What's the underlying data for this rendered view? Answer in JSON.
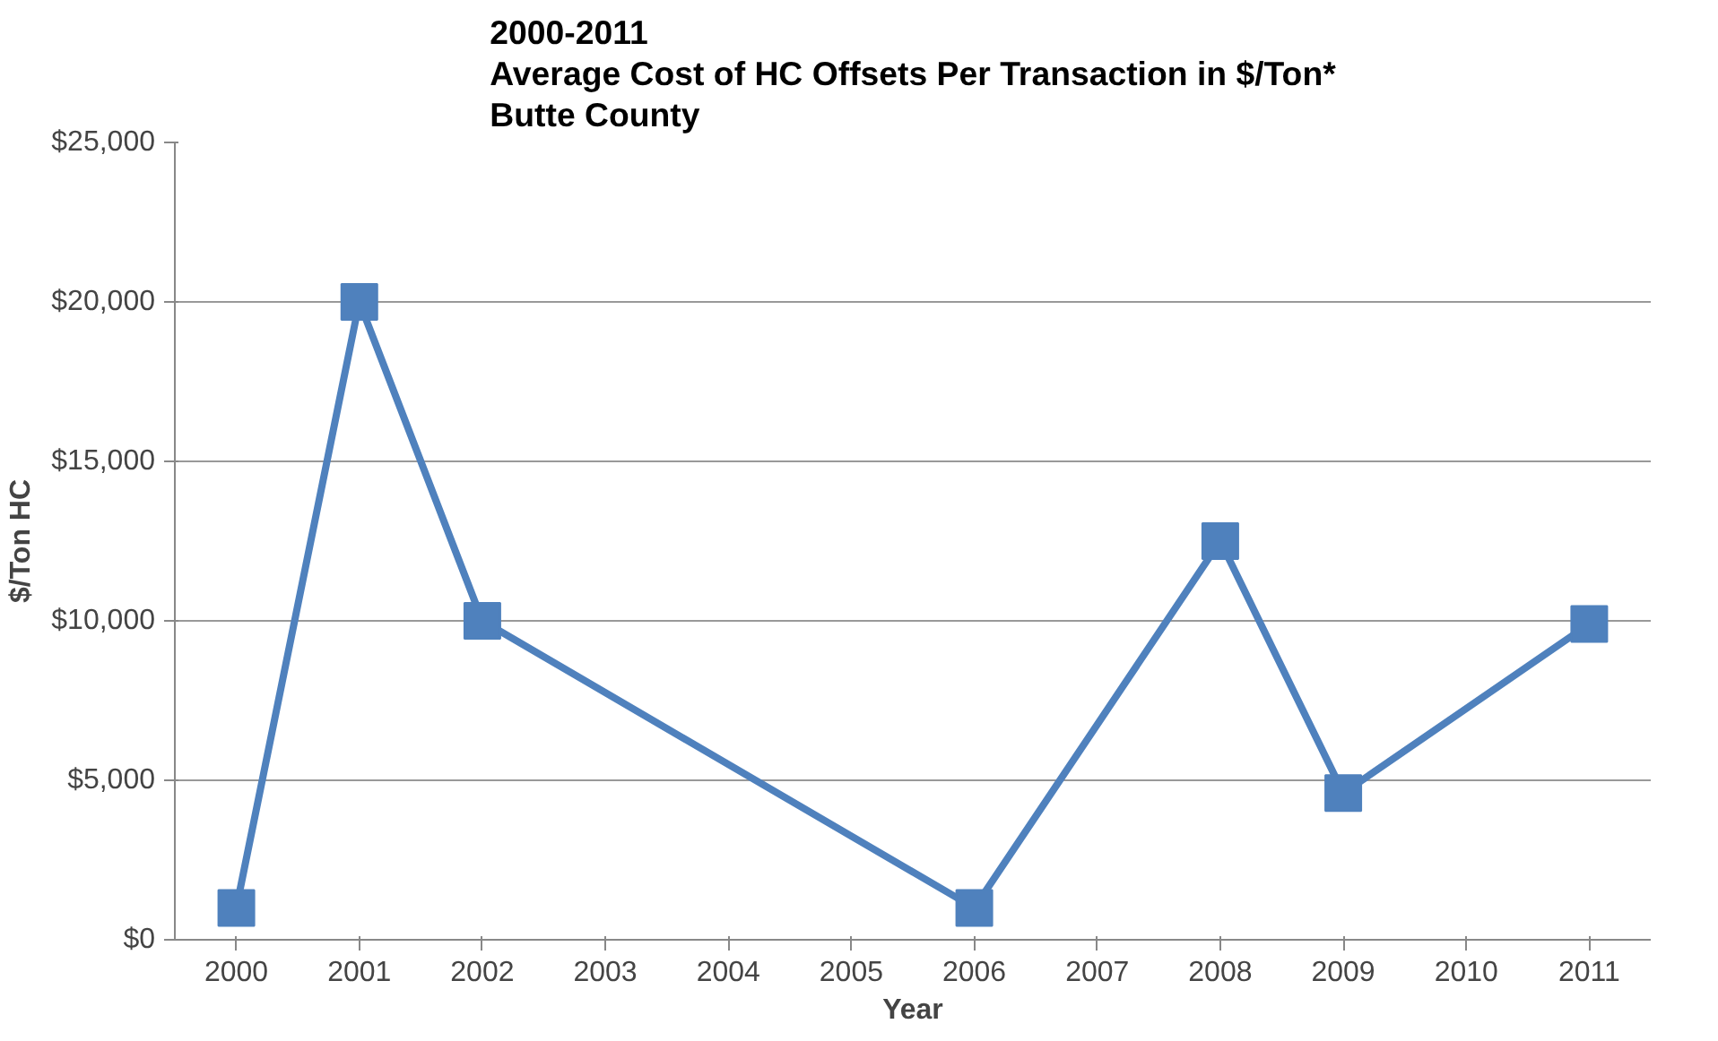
{
  "chart_data": {
    "type": "line",
    "title": "2000-2011\nAverage Cost of HC Offsets Per Transaction in $/Ton*\nButte County",
    "xlabel": "Year",
    "ylabel": "$/Ton HC",
    "x": [
      2000,
      2001,
      2002,
      2006,
      2008,
      2009,
      2011
    ],
    "series": [
      {
        "color": "#4f81bd",
        "values": [
          1000,
          20000,
          10000,
          1000,
          12500,
          4600,
          9900
        ]
      }
    ],
    "xlim": [
      1999.5,
      2011.5
    ],
    "xticks": [
      2000,
      2001,
      2002,
      2003,
      2004,
      2005,
      2006,
      2007,
      2008,
      2009,
      2010,
      2011
    ],
    "ylim": [
      0,
      25000
    ],
    "yticks": [
      {
        "value": 0,
        "label": "$0"
      },
      {
        "value": 5000,
        "label": "$5,000"
      },
      {
        "value": 10000,
        "label": "$10,000"
      },
      {
        "value": 15000,
        "label": "$15,000"
      },
      {
        "value": 20000,
        "label": "$20,000"
      },
      {
        "value": 25000,
        "label": "$25,000"
      }
    ],
    "grid": "y",
    "marker": "square",
    "line_style": "solid"
  }
}
